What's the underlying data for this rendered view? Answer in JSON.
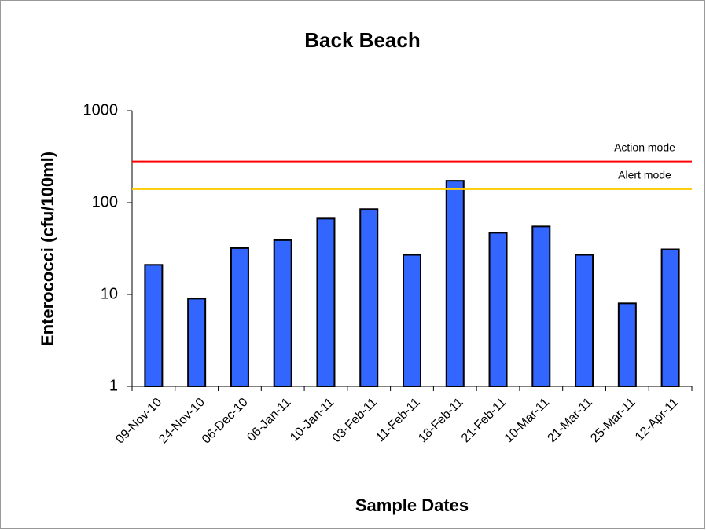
{
  "chart_data": {
    "type": "bar",
    "title": "Back Beach",
    "x_label": "Sample Dates",
    "y_label": "Enterococci (cfu/100ml)",
    "categories": [
      "09-Nov-10",
      "24-Nov-10",
      "06-Dec-10",
      "06-Jan-11",
      "10-Jan-11",
      "03-Feb-11",
      "11-Feb-11",
      "18-Feb-11",
      "21-Feb-11",
      "10-Mar-11",
      "21-Mar-11",
      "25-Mar-11",
      "12-Apr-11"
    ],
    "values": [
      21,
      9,
      32,
      39,
      67,
      85,
      27,
      173,
      47,
      55,
      27,
      8,
      31
    ],
    "color": "#3366ff",
    "log_scale": true,
    "ylim": [
      1,
      1000
    ],
    "yticks": [
      1,
      10,
      100,
      1000
    ],
    "reference_lines": [
      {
        "label": "Action mode",
        "value": 280,
        "color": "#ff0000"
      },
      {
        "label": "Alert mode",
        "value": 140,
        "color": "#ffcc00"
      }
    ]
  }
}
